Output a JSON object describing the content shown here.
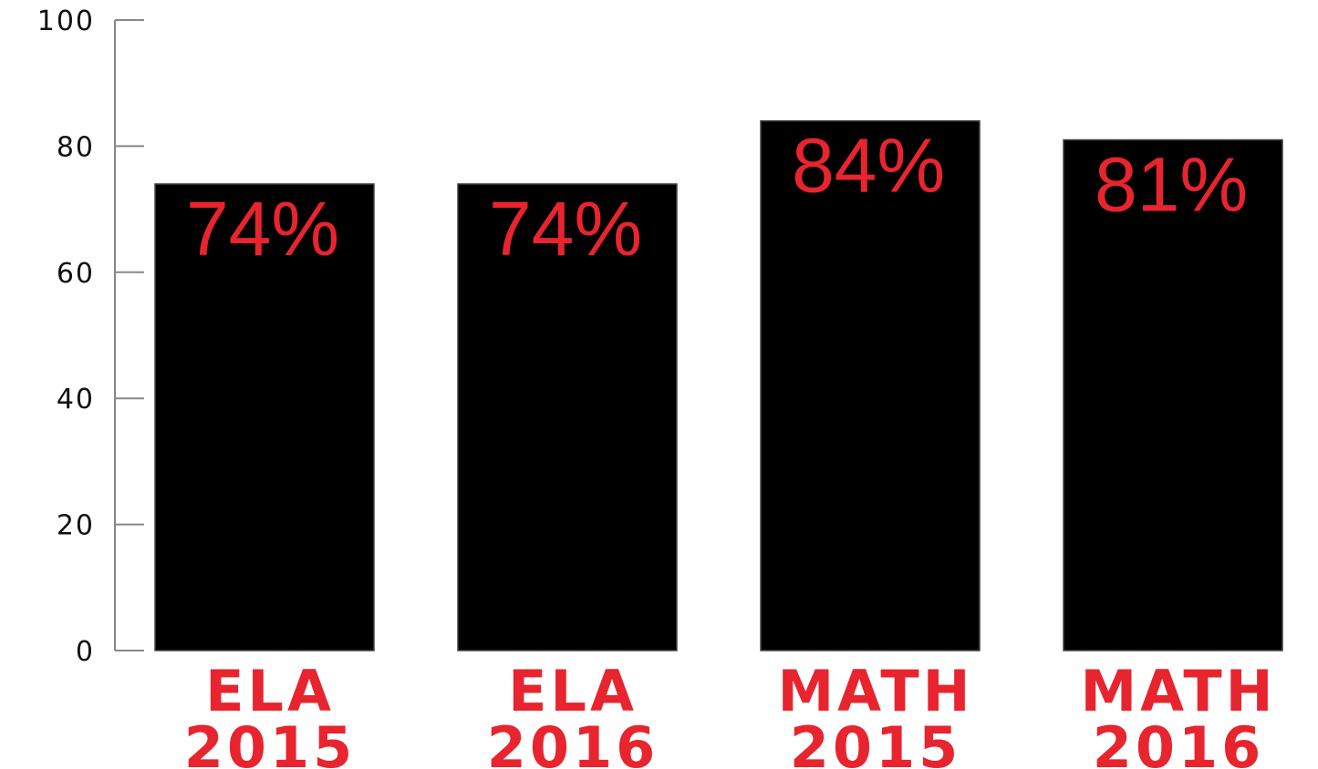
{
  "chart_data": {
    "type": "bar",
    "title": "",
    "xlabel": "",
    "ylabel": "",
    "categories": [
      [
        "ELA",
        "2015"
      ],
      [
        "ELA",
        "2016"
      ],
      [
        "MATH",
        "2015"
      ],
      [
        "MATH",
        "2016"
      ]
    ],
    "values": [
      74,
      74,
      84,
      81
    ],
    "value_labels": [
      "74%",
      "74%",
      "84%",
      "81%"
    ],
    "ylim": [
      0,
      100
    ],
    "yticks": [
      0,
      20,
      40,
      60,
      80,
      100
    ],
    "grid": false,
    "legend": "none"
  },
  "colors": {
    "bar": "#000000",
    "accent": "#e8242e",
    "axis": "#888888",
    "text": "#111111"
  }
}
